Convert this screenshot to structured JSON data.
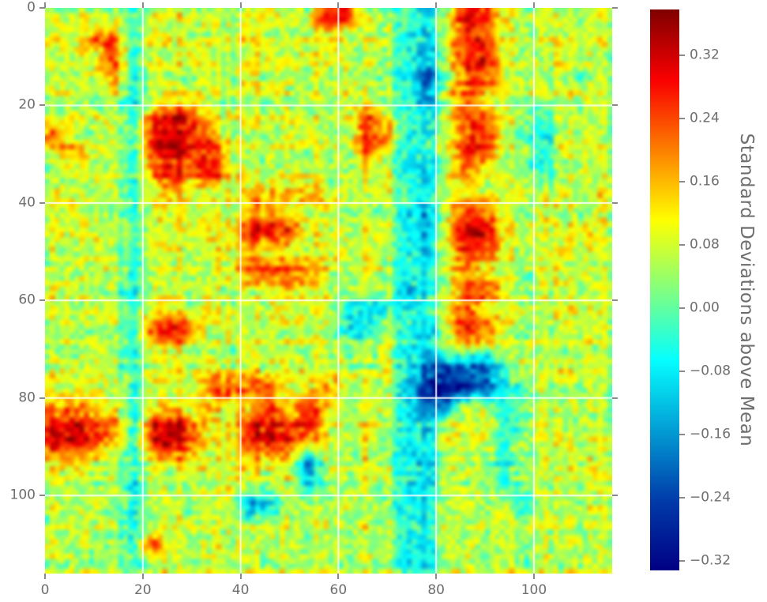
{
  "figure": {
    "background": "#ffffff",
    "text_color": "#6e6e6e",
    "tick_color": "#8a8a8a",
    "grid_color": "#ffffff"
  },
  "chart_data": {
    "type": "heatmap",
    "title": "",
    "xlabel": "",
    "ylabel": "",
    "x_range": [
      0,
      116
    ],
    "y_range": [
      0,
      116
    ],
    "x_ticks": {
      "values": [
        0,
        20,
        40,
        60,
        80,
        100
      ],
      "labels": [
        "0",
        "20",
        "40",
        "60",
        "80",
        "100"
      ]
    },
    "y_ticks": {
      "values": [
        0,
        20,
        40,
        60,
        80,
        100
      ],
      "labels": [
        "0",
        "20",
        "40",
        "60",
        "80",
        "100"
      ]
    },
    "grid": true,
    "legend": "none",
    "colormap": {
      "name": "jet",
      "stops": [
        {
          "t": 0.0,
          "rgb": [
            0,
            0,
            131
          ]
        },
        {
          "t": 0.125,
          "rgb": [
            0,
            60,
            170
          ]
        },
        {
          "t": 0.375,
          "rgb": [
            5,
            255,
            255
          ]
        },
        {
          "t": 0.625,
          "rgb": [
            255,
            255,
            0
          ]
        },
        {
          "t": 0.875,
          "rgb": [
            250,
            0,
            0
          ]
        },
        {
          "t": 1.0,
          "rgb": [
            128,
            0,
            0
          ]
        }
      ]
    },
    "colorbar": {
      "label": "Standard Deviations above Mean",
      "tick_values": [
        0.32,
        0.24,
        0.16,
        0.08,
        0.0,
        -0.08,
        -0.16,
        -0.24,
        -0.32
      ],
      "tick_labels": [
        "0.32",
        "0.24",
        "0.16",
        "0.08",
        "0.00",
        "−0.08",
        "−0.16",
        "−0.24",
        "−0.32"
      ],
      "vmin": -0.332,
      "vmax": 0.378,
      "position": "right"
    },
    "matrix_units_per_cell": 4,
    "matrix_note": "29x29 downsampled estimate of the 116x116 field; values are standard deviations above mean",
    "matrix": [
      [
        0.08,
        0.05,
        0.1,
        0.06,
        -0.04,
        0.09,
        0.12,
        0.07,
        0.1,
        0.05,
        0.08,
        0.12,
        0.06,
        0.09,
        0.3,
        0.26,
        0.08,
        0.05,
        -0.02,
        -0.08,
        0.06,
        0.32,
        0.28,
        0.1,
        0.06,
        0.09,
        0.05,
        0.08,
        0.06
      ],
      [
        0.1,
        0.07,
        0.24,
        0.28,
        -0.06,
        0.12,
        0.08,
        0.1,
        0.06,
        0.09,
        0.12,
        0.07,
        0.05,
        0.1,
        0.12,
        0.08,
        0.06,
        0.09,
        -0.05,
        -0.1,
        0.08,
        0.3,
        0.24,
        0.07,
        0.05,
        0.1,
        0.08,
        0.06,
        0.09
      ],
      [
        0.06,
        0.1,
        0.08,
        0.26,
        -0.08,
        0.09,
        0.06,
        0.12,
        0.08,
        0.05,
        0.09,
        0.11,
        0.06,
        0.08,
        0.1,
        0.07,
        0.05,
        0.06,
        -0.08,
        -0.14,
        0.05,
        0.28,
        0.31,
        0.09,
        0.07,
        0.05,
        0.1,
        0.07,
        0.05
      ],
      [
        0.09,
        0.06,
        0.12,
        0.22,
        -0.05,
        0.1,
        0.08,
        0.06,
        0.1,
        0.07,
        0.12,
        0.08,
        0.05,
        0.09,
        0.06,
        0.1,
        0.07,
        0.05,
        -0.06,
        -0.22,
        0.04,
        0.26,
        0.3,
        0.08,
        0.1,
        0.06,
        0.08,
        0.05,
        0.07
      ],
      [
        0.07,
        0.09,
        0.05,
        0.08,
        -0.1,
        0.06,
        0.09,
        0.12,
        0.07,
        0.05,
        0.08,
        0.1,
        0.06,
        0.09,
        0.07,
        0.11,
        0.05,
        0.08,
        -0.04,
        -0.16,
        0.07,
        0.24,
        0.12,
        0.06,
        0.08,
        0.1,
        0.05,
        0.09,
        0.06
      ],
      [
        0.05,
        0.08,
        0.1,
        0.06,
        -0.06,
        0.22,
        0.3,
        0.26,
        0.12,
        0.08,
        0.1,
        0.06,
        0.09,
        0.07,
        0.05,
        0.1,
        0.26,
        0.08,
        -0.06,
        -0.08,
        0.05,
        0.28,
        0.22,
        0.09,
        0.06,
        -0.04,
        0.08,
        0.05,
        0.07
      ],
      [
        0.24,
        0.08,
        0.06,
        0.1,
        -0.04,
        0.3,
        0.34,
        0.3,
        0.22,
        0.07,
        0.09,
        0.05,
        0.08,
        0.1,
        0.06,
        0.09,
        0.3,
        0.24,
        -0.05,
        -0.06,
        0.08,
        0.26,
        0.3,
        0.07,
        0.05,
        -0.08,
        0.06,
        0.09,
        0.05
      ],
      [
        0.08,
        0.22,
        0.1,
        0.07,
        -0.08,
        0.26,
        0.32,
        0.28,
        0.26,
        0.09,
        0.06,
        0.1,
        0.07,
        0.05,
        0.09,
        0.06,
        0.24,
        0.1,
        -0.08,
        -0.04,
        0.06,
        0.3,
        0.26,
        0.05,
        0.08,
        -0.05,
        0.09,
        0.06,
        0.08
      ],
      [
        0.06,
        0.09,
        0.07,
        0.1,
        -0.05,
        0.2,
        0.28,
        0.24,
        0.3,
        0.12,
        0.08,
        0.06,
        0.09,
        0.11,
        0.07,
        0.05,
        0.1,
        0.08,
        -0.06,
        -0.1,
        0.09,
        0.24,
        0.1,
        0.08,
        0.06,
        -0.06,
        0.05,
        0.1,
        0.07
      ],
      [
        0.09,
        0.06,
        0.08,
        0.05,
        -0.08,
        0.1,
        0.12,
        0.09,
        0.07,
        0.05,
        0.14,
        0.16,
        0.12,
        0.15,
        0.1,
        0.08,
        0.06,
        0.09,
        -0.05,
        -0.08,
        0.07,
        0.1,
        0.08,
        0.06,
        0.09,
        0.05,
        0.08,
        0.06,
        0.1
      ],
      [
        0.07,
        0.1,
        0.06,
        0.09,
        -0.04,
        0.08,
        0.12,
        0.07,
        0.1,
        0.06,
        0.15,
        0.22,
        0.12,
        0.08,
        0.1,
        0.07,
        0.05,
        0.09,
        -0.08,
        -0.12,
        0.06,
        0.3,
        0.26,
        0.08,
        0.05,
        0.1,
        0.07,
        0.05,
        0.08
      ],
      [
        0.05,
        0.08,
        0.1,
        0.07,
        -0.06,
        0.09,
        0.06,
        0.1,
        0.08,
        0.12,
        0.26,
        0.3,
        0.24,
        0.1,
        0.07,
        0.05,
        0.09,
        0.06,
        -0.1,
        -0.16,
        0.08,
        0.34,
        0.3,
        0.06,
        0.09,
        0.07,
        0.05,
        0.1,
        0.06
      ],
      [
        0.08,
        0.06,
        0.09,
        0.05,
        -0.08,
        0.07,
        0.1,
        0.06,
        0.09,
        0.08,
        0.12,
        0.1,
        0.08,
        0.06,
        0.1,
        0.07,
        0.09,
        0.05,
        -0.06,
        -0.1,
        0.07,
        0.28,
        0.24,
        0.09,
        0.06,
        0.08,
        0.1,
        0.06,
        0.09
      ],
      [
        0.06,
        0.09,
        0.07,
        0.1,
        -0.05,
        0.08,
        0.06,
        0.09,
        0.07,
        0.1,
        0.24,
        0.28,
        0.22,
        0.26,
        0.08,
        0.06,
        0.1,
        0.07,
        -0.08,
        -0.06,
        0.09,
        0.22,
        0.1,
        0.07,
        0.05,
        0.09,
        0.06,
        0.08,
        0.05
      ],
      [
        0.09,
        0.07,
        0.05,
        0.08,
        -0.1,
        0.06,
        0.09,
        0.07,
        0.1,
        0.06,
        0.08,
        0.1,
        0.14,
        0.09,
        0.07,
        0.05,
        0.08,
        0.06,
        -0.12,
        -0.08,
        0.05,
        0.26,
        0.3,
        0.08,
        0.06,
        0.09,
        0.07,
        0.05,
        0.1
      ],
      [
        0.07,
        0.05,
        0.09,
        0.06,
        -0.06,
        0.1,
        0.08,
        0.06,
        0.09,
        0.07,
        0.05,
        0.08,
        0.1,
        0.06,
        0.09,
        -0.08,
        -0.12,
        -0.06,
        -0.1,
        -0.05,
        0.08,
        0.24,
        0.08,
        0.06,
        0.1,
        0.05,
        0.09,
        0.07,
        0.06
      ],
      [
        0.05,
        0.08,
        0.06,
        0.09,
        -0.04,
        0.28,
        0.32,
        0.24,
        0.07,
        0.1,
        0.06,
        0.08,
        0.05,
        0.09,
        0.07,
        -0.06,
        -0.08,
        0.1,
        -0.05,
        -0.1,
        0.06,
        0.3,
        0.26,
        0.09,
        0.05,
        0.08,
        0.06,
        0.1,
        0.07
      ],
      [
        0.08,
        0.06,
        0.1,
        0.07,
        -0.08,
        0.09,
        0.12,
        0.08,
        0.06,
        0.05,
        0.1,
        0.07,
        0.09,
        0.06,
        0.08,
        0.05,
        0.07,
        0.09,
        -0.06,
        -0.08,
        0.1,
        0.12,
        0.08,
        0.06,
        0.09,
        0.07,
        0.05,
        0.08,
        0.06
      ],
      [
        0.06,
        0.09,
        0.07,
        0.05,
        -0.06,
        0.08,
        0.1,
        0.06,
        0.09,
        0.07,
        0.1,
        0.05,
        0.08,
        0.06,
        0.09,
        0.07,
        0.05,
        0.1,
        -0.08,
        -0.22,
        -0.26,
        -0.2,
        -0.24,
        -0.06,
        0.08,
        0.05,
        0.09,
        0.06,
        0.08
      ],
      [
        0.12,
        0.1,
        0.14,
        0.09,
        -0.04,
        0.12,
        0.1,
        0.14,
        0.24,
        0.28,
        0.22,
        0.26,
        0.12,
        0.15,
        0.22,
        0.1,
        0.12,
        0.09,
        -0.1,
        -0.26,
        -0.3,
        -0.24,
        -0.18,
        -0.08,
        0.06,
        0.09,
        0.05,
        0.08,
        0.06
      ],
      [
        0.18,
        0.22,
        0.15,
        0.12,
        -0.06,
        0.1,
        0.12,
        0.09,
        0.15,
        0.1,
        0.12,
        0.26,
        0.1,
        0.3,
        0.12,
        0.09,
        0.07,
        0.1,
        -0.08,
        -0.18,
        -0.14,
        0.1,
        0.08,
        -0.06,
        0.05,
        0.09,
        0.06,
        0.08,
        0.05
      ],
      [
        0.3,
        0.34,
        0.28,
        0.24,
        -0.05,
        0.3,
        0.34,
        0.26,
        0.1,
        0.12,
        0.28,
        0.32,
        0.26,
        0.3,
        0.1,
        0.08,
        0.12,
        0.06,
        -0.06,
        -0.1,
        0.08,
        0.1,
        0.12,
        -0.08,
        0.06,
        0.09,
        0.05,
        0.07,
        0.06
      ],
      [
        0.26,
        0.3,
        0.22,
        0.12,
        -0.08,
        0.26,
        0.3,
        0.24,
        0.08,
        0.1,
        0.24,
        0.28,
        0.22,
        0.12,
        0.08,
        0.06,
        0.1,
        0.05,
        -0.1,
        -0.08,
        0.06,
        0.08,
        0.1,
        -0.06,
        0.08,
        0.05,
        0.09,
        0.06,
        0.08
      ],
      [
        0.1,
        0.12,
        0.08,
        0.06,
        -0.06,
        0.1,
        0.08,
        0.12,
        0.06,
        0.09,
        0.1,
        0.08,
        0.06,
        -0.22,
        0.07,
        0.05,
        0.09,
        0.06,
        -0.08,
        -0.12,
        0.05,
        0.08,
        0.06,
        -0.1,
        0.06,
        0.08,
        0.05,
        0.09,
        0.06
      ],
      [
        0.06,
        0.08,
        0.05,
        0.09,
        -0.1,
        0.07,
        0.05,
        0.08,
        0.06,
        0.1,
        0.07,
        0.05,
        0.09,
        -0.08,
        0.06,
        0.08,
        0.05,
        0.07,
        -0.06,
        -0.1,
        0.08,
        0.06,
        0.09,
        -0.05,
        0.07,
        0.05,
        0.08,
        0.06,
        0.09
      ],
      [
        0.08,
        0.05,
        0.09,
        0.06,
        -0.06,
        0.08,
        0.1,
        0.06,
        0.09,
        0.07,
        -0.16,
        -0.1,
        0.06,
        0.08,
        0.05,
        0.09,
        0.07,
        0.05,
        -0.1,
        -0.06,
        0.07,
        0.09,
        0.05,
        0.08,
        -0.06,
        0.09,
        0.06,
        0.08,
        0.05
      ],
      [
        0.05,
        0.09,
        0.06,
        0.08,
        -0.08,
        0.05,
        0.07,
        0.09,
        0.06,
        0.08,
        0.05,
        0.09,
        0.07,
        0.06,
        0.1,
        0.05,
        0.08,
        0.06,
        -0.06,
        -0.08,
        0.09,
        0.05,
        0.08,
        0.06,
        0.09,
        0.05,
        0.07,
        0.06,
        0.08
      ],
      [
        0.09,
        0.06,
        0.08,
        0.05,
        -0.05,
        0.24,
        0.06,
        0.08,
        0.1,
        0.05,
        0.09,
        0.06,
        0.08,
        0.05,
        0.07,
        0.09,
        0.06,
        0.08,
        -0.08,
        -0.06,
        0.05,
        0.08,
        0.06,
        0.09,
        0.05,
        0.08,
        0.06,
        0.07,
        0.05
      ],
      [
        0.06,
        0.08,
        0.05,
        0.09,
        -0.06,
        0.07,
        0.09,
        0.05,
        0.08,
        0.06,
        0.1,
        0.05,
        0.08,
        0.06,
        0.09,
        0.05,
        0.07,
        0.08,
        -0.05,
        -0.08,
        0.06,
        0.09,
        0.05,
        0.07,
        0.06,
        0.08,
        0.05,
        0.09,
        0.06
      ]
    ]
  }
}
